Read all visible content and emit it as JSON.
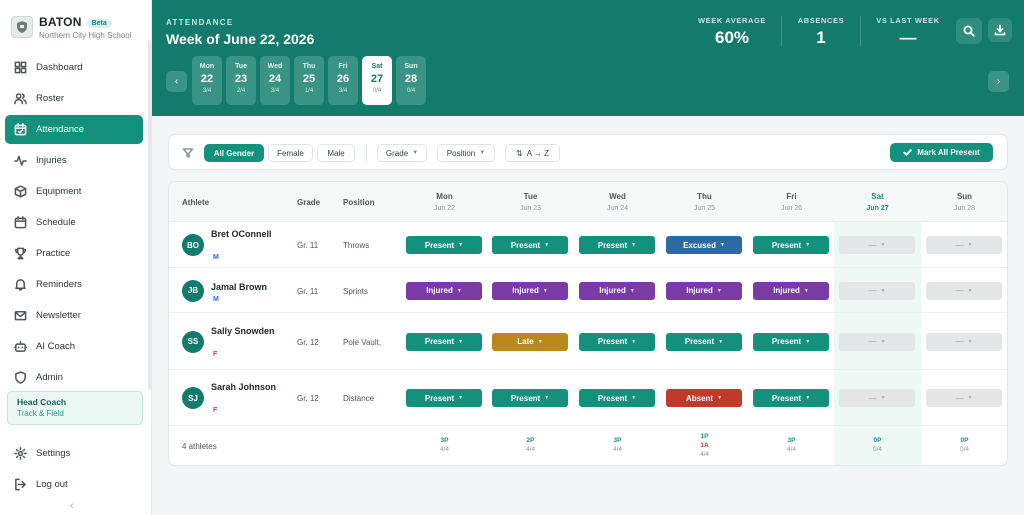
{
  "brand": {
    "name": "BATON",
    "badge": "Beta",
    "school": "Northern City High School"
  },
  "nav": [
    {
      "label": "Dashboard",
      "icon": "grid-icon"
    },
    {
      "label": "Roster",
      "icon": "users-icon"
    },
    {
      "label": "Attendance",
      "icon": "calendar-check-icon",
      "active": true
    },
    {
      "label": "Injuries",
      "icon": "activity-icon"
    },
    {
      "label": "Equipment",
      "icon": "box-icon"
    },
    {
      "label": "Schedule",
      "icon": "calendar-icon"
    },
    {
      "label": "Practice",
      "icon": "trophy-icon"
    },
    {
      "label": "Reminders",
      "icon": "bell-icon"
    },
    {
      "label": "Newsletter",
      "icon": "mail-icon"
    },
    {
      "label": "AI Coach",
      "icon": "bot-icon"
    },
    {
      "label": "Admin",
      "icon": "shield-icon"
    }
  ],
  "role": {
    "title": "Head Coach",
    "sub": "Track & Field"
  },
  "bottom_nav": [
    {
      "label": "Settings",
      "icon": "gear-icon"
    },
    {
      "label": "Log out",
      "icon": "logout-icon"
    }
  ],
  "collapse_glyph": "‹",
  "header": {
    "kicker": "ATTENDANCE",
    "title": "Week of June 22, 2026",
    "stats": [
      {
        "label": "WEEK AVERAGE",
        "value": "60%"
      },
      {
        "label": "ABSENCES",
        "value": "1"
      },
      {
        "label": "VS LAST WEEK",
        "value": "—"
      }
    ],
    "prev_glyph": "‹",
    "next_glyph": "›"
  },
  "days": [
    {
      "name": "Mon",
      "date": "22",
      "count": "3/4"
    },
    {
      "name": "Tue",
      "date": "23",
      "count": "2/4"
    },
    {
      "name": "Wed",
      "date": "24",
      "count": "3/4"
    },
    {
      "name": "Thu",
      "date": "25",
      "count": "1/4"
    },
    {
      "name": "Fri",
      "date": "26",
      "count": "3/4"
    },
    {
      "name": "Sat",
      "date": "27",
      "count": "0/4",
      "selected": true
    },
    {
      "name": "Sun",
      "date": "28",
      "count": "0/4"
    }
  ],
  "filters": {
    "gender": [
      "All Gender",
      "Female",
      "Male"
    ],
    "grade": "Grade",
    "position": "Position",
    "sort": "A → Z",
    "mark_all": "Mark All Present"
  },
  "table": {
    "headers": {
      "athlete": "Athlete",
      "grade": "Grade",
      "position": "Position"
    },
    "days": [
      {
        "name": "Mon",
        "date": "Jun 22"
      },
      {
        "name": "Tue",
        "date": "Jun 23"
      },
      {
        "name": "Wed",
        "date": "Jun 24"
      },
      {
        "name": "Thu",
        "date": "Jun 25"
      },
      {
        "name": "Fri",
        "date": "Jun 26"
      },
      {
        "name": "Sat",
        "date": "Jun 27"
      },
      {
        "name": "Sun",
        "date": "Jun 28"
      }
    ],
    "rows": [
      {
        "initials": "BO",
        "name": "Bret OConnell",
        "gender": "M",
        "grade": "Gr. 11",
        "position": "Throws",
        "status": [
          "Present",
          "Present",
          "Present",
          "Excused",
          "Present",
          "—",
          "—"
        ]
      },
      {
        "initials": "JB",
        "name": "Jamal Brown",
        "gender": "M",
        "grade": "Gr. 11",
        "position": "Sprints",
        "status": [
          "Injured",
          "Injured",
          "Injured",
          "Injured",
          "Injured",
          "—",
          "—"
        ]
      },
      {
        "initials": "SS",
        "name": "Sally Snowden",
        "gender": "F",
        "grade": "Gr. 12",
        "position": "Pole Vault,",
        "status": [
          "Present",
          "Late",
          "Present",
          "Present",
          "Present",
          "—",
          "—"
        ]
      },
      {
        "initials": "SJ",
        "name": "Sarah Johnson",
        "gender": "F",
        "grade": "Gr. 12",
        "position": "Distance",
        "status": [
          "Present",
          "Present",
          "Present",
          "Absent",
          "Present",
          "—",
          "—"
        ]
      }
    ],
    "footer": {
      "total": "4 athletes",
      "summaries": [
        {
          "present": "3P",
          "absent": "",
          "ratio": "4/4"
        },
        {
          "present": "2P",
          "absent": "",
          "ratio": "4/4"
        },
        {
          "present": "3P",
          "absent": "",
          "ratio": "4/4"
        },
        {
          "present": "1P",
          "absent": "1A",
          "ratio": "4/4"
        },
        {
          "present": "3P",
          "absent": "",
          "ratio": "4/4"
        },
        {
          "present": "0P",
          "absent": "",
          "ratio": "0/4"
        },
        {
          "present": "0P",
          "absent": "",
          "ratio": "0/4"
        }
      ]
    }
  },
  "colors": {
    "brand_green": "#137b6c",
    "accent": "#14917c",
    "present": "#14917c",
    "injured": "#7b3aa6",
    "excused": "#2d6aa0",
    "late": "#b8891b",
    "absent": "#c0392b"
  }
}
